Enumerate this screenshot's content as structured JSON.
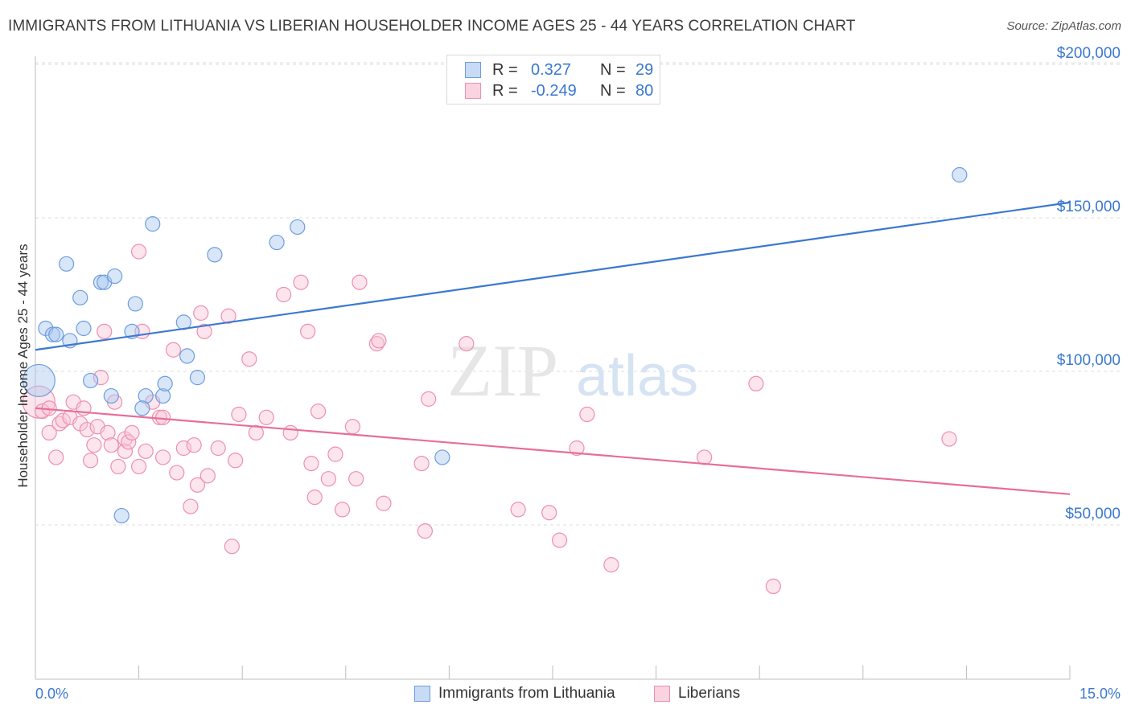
{
  "header": {
    "title": "IMMIGRANTS FROM LITHUANIA VS LIBERIAN HOUSEHOLDER INCOME AGES 25 - 44 YEARS CORRELATION CHART",
    "source": "Source: ZipAtlas.com"
  },
  "legend": {
    "r_label": "R =",
    "n_label": "N =",
    "rows": [
      {
        "r": "0.327",
        "n": "29",
        "color": "#a9c8f0",
        "border": "#6d9de0"
      },
      {
        "r": "-0.249",
        "n": "80",
        "color": "#f9c6d6",
        "border": "#ee8fae"
      }
    ]
  },
  "bottom_legend": [
    "Immigrants from Lithuania",
    "Liberians"
  ],
  "watermark": {
    "zip": "ZIP",
    "atlas": "atlas"
  },
  "chart_data": {
    "type": "scatter",
    "xlabel": "",
    "ylabel": "Householder Income Ages 25 - 44 years",
    "xlim": [
      0,
      15
    ],
    "ylim": [
      0,
      210000
    ],
    "x_tick_labels": [
      "0.0%",
      "15.0%"
    ],
    "y_ticks": [
      50000,
      100000,
      150000,
      200000
    ],
    "y_tick_labels": [
      "$50,000",
      "$100,000",
      "$150,000",
      "$200,000"
    ],
    "grid": "horizontal dashed",
    "colors": {
      "lithuania": "#3b78d0",
      "liberians": "#e86e96"
    },
    "series": [
      {
        "name": "Immigrants from Lithuania",
        "trend": {
          "x": [
            0,
            15
          ],
          "y": [
            107000,
            155000
          ]
        },
        "points": [
          {
            "x": 0.05,
            "y": 97000,
            "big": true
          },
          {
            "x": 0.15,
            "y": 114000
          },
          {
            "x": 0.25,
            "y": 112000
          },
          {
            "x": 0.3,
            "y": 112000
          },
          {
            "x": 0.5,
            "y": 110000
          },
          {
            "x": 0.45,
            "y": 135000
          },
          {
            "x": 0.65,
            "y": 124000
          },
          {
            "x": 0.7,
            "y": 114000
          },
          {
            "x": 0.95,
            "y": 129000
          },
          {
            "x": 1.0,
            "y": 129000
          },
          {
            "x": 1.15,
            "y": 131000
          },
          {
            "x": 0.8,
            "y": 97000
          },
          {
            "x": 1.1,
            "y": 92000
          },
          {
            "x": 1.45,
            "y": 122000
          },
          {
            "x": 1.4,
            "y": 113000
          },
          {
            "x": 1.7,
            "y": 148000
          },
          {
            "x": 1.6,
            "y": 92000
          },
          {
            "x": 1.55,
            "y": 88000
          },
          {
            "x": 1.85,
            "y": 92000
          },
          {
            "x": 1.88,
            "y": 96000
          },
          {
            "x": 2.15,
            "y": 116000
          },
          {
            "x": 2.2,
            "y": 105000
          },
          {
            "x": 2.35,
            "y": 98000
          },
          {
            "x": 2.6,
            "y": 138000
          },
          {
            "x": 3.5,
            "y": 142000
          },
          {
            "x": 3.8,
            "y": 147000
          },
          {
            "x": 1.25,
            "y": 53000
          },
          {
            "x": 5.9,
            "y": 72000
          },
          {
            "x": 13.4,
            "y": 164000
          }
        ]
      },
      {
        "name": "Liberians",
        "trend": {
          "x": [
            0,
            15
          ],
          "y": [
            88000,
            60000
          ]
        },
        "points": [
          {
            "x": 0.05,
            "y": 90000,
            "big": true
          },
          {
            "x": 0.1,
            "y": 87000
          },
          {
            "x": 0.2,
            "y": 88000
          },
          {
            "x": 0.2,
            "y": 80000
          },
          {
            "x": 0.3,
            "y": 72000
          },
          {
            "x": 0.35,
            "y": 83000
          },
          {
            "x": 0.4,
            "y": 84000
          },
          {
            "x": 0.5,
            "y": 85000
          },
          {
            "x": 0.55,
            "y": 90000
          },
          {
            "x": 0.65,
            "y": 83000
          },
          {
            "x": 0.7,
            "y": 88000
          },
          {
            "x": 0.75,
            "y": 81000
          },
          {
            "x": 0.8,
            "y": 71000
          },
          {
            "x": 0.85,
            "y": 76000
          },
          {
            "x": 0.9,
            "y": 82000
          },
          {
            "x": 0.95,
            "y": 98000
          },
          {
            "x": 1.0,
            "y": 113000
          },
          {
            "x": 1.05,
            "y": 80000
          },
          {
            "x": 1.1,
            "y": 76000
          },
          {
            "x": 1.15,
            "y": 90000
          },
          {
            "x": 1.2,
            "y": 69000
          },
          {
            "x": 1.3,
            "y": 78000
          },
          {
            "x": 1.3,
            "y": 74000
          },
          {
            "x": 1.35,
            "y": 77000
          },
          {
            "x": 1.4,
            "y": 80000
          },
          {
            "x": 1.5,
            "y": 139000
          },
          {
            "x": 1.5,
            "y": 69000
          },
          {
            "x": 1.55,
            "y": 113000
          },
          {
            "x": 1.6,
            "y": 74000
          },
          {
            "x": 1.7,
            "y": 90000
          },
          {
            "x": 1.8,
            "y": 85000
          },
          {
            "x": 1.85,
            "y": 85000
          },
          {
            "x": 1.85,
            "y": 72000
          },
          {
            "x": 2.0,
            "y": 107000
          },
          {
            "x": 2.05,
            "y": 67000
          },
          {
            "x": 2.15,
            "y": 75000
          },
          {
            "x": 2.25,
            "y": 56000
          },
          {
            "x": 2.3,
            "y": 76000
          },
          {
            "x": 2.35,
            "y": 63000
          },
          {
            "x": 2.4,
            "y": 119000
          },
          {
            "x": 2.45,
            "y": 113000
          },
          {
            "x": 2.5,
            "y": 66000
          },
          {
            "x": 2.65,
            "y": 75000
          },
          {
            "x": 2.8,
            "y": 118000
          },
          {
            "x": 2.85,
            "y": 43000
          },
          {
            "x": 2.9,
            "y": 71000
          },
          {
            "x": 2.95,
            "y": 86000
          },
          {
            "x": 3.1,
            "y": 104000
          },
          {
            "x": 3.2,
            "y": 80000
          },
          {
            "x": 3.35,
            "y": 85000
          },
          {
            "x": 3.6,
            "y": 125000
          },
          {
            "x": 3.7,
            "y": 80000
          },
          {
            "x": 3.85,
            "y": 129000
          },
          {
            "x": 3.95,
            "y": 113000
          },
          {
            "x": 4.0,
            "y": 70000
          },
          {
            "x": 4.05,
            "y": 59000
          },
          {
            "x": 4.1,
            "y": 87000
          },
          {
            "x": 4.25,
            "y": 65000
          },
          {
            "x": 4.35,
            "y": 73000
          },
          {
            "x": 4.45,
            "y": 55000
          },
          {
            "x": 4.6,
            "y": 82000
          },
          {
            "x": 4.65,
            "y": 65000
          },
          {
            "x": 4.7,
            "y": 129000
          },
          {
            "x": 4.95,
            "y": 109000
          },
          {
            "x": 4.98,
            "y": 110000
          },
          {
            "x": 5.05,
            "y": 57000
          },
          {
            "x": 5.6,
            "y": 70000
          },
          {
            "x": 5.65,
            "y": 48000
          },
          {
            "x": 5.7,
            "y": 91000
          },
          {
            "x": 6.25,
            "y": 109000
          },
          {
            "x": 7.0,
            "y": 55000
          },
          {
            "x": 7.45,
            "y": 54000
          },
          {
            "x": 7.6,
            "y": 45000
          },
          {
            "x": 7.85,
            "y": 75000
          },
          {
            "x": 8.0,
            "y": 86000
          },
          {
            "x": 8.35,
            "y": 37000
          },
          {
            "x": 9.7,
            "y": 72000
          },
          {
            "x": 10.45,
            "y": 96000
          },
          {
            "x": 10.7,
            "y": 30000
          },
          {
            "x": 13.25,
            "y": 78000
          }
        ]
      }
    ]
  }
}
